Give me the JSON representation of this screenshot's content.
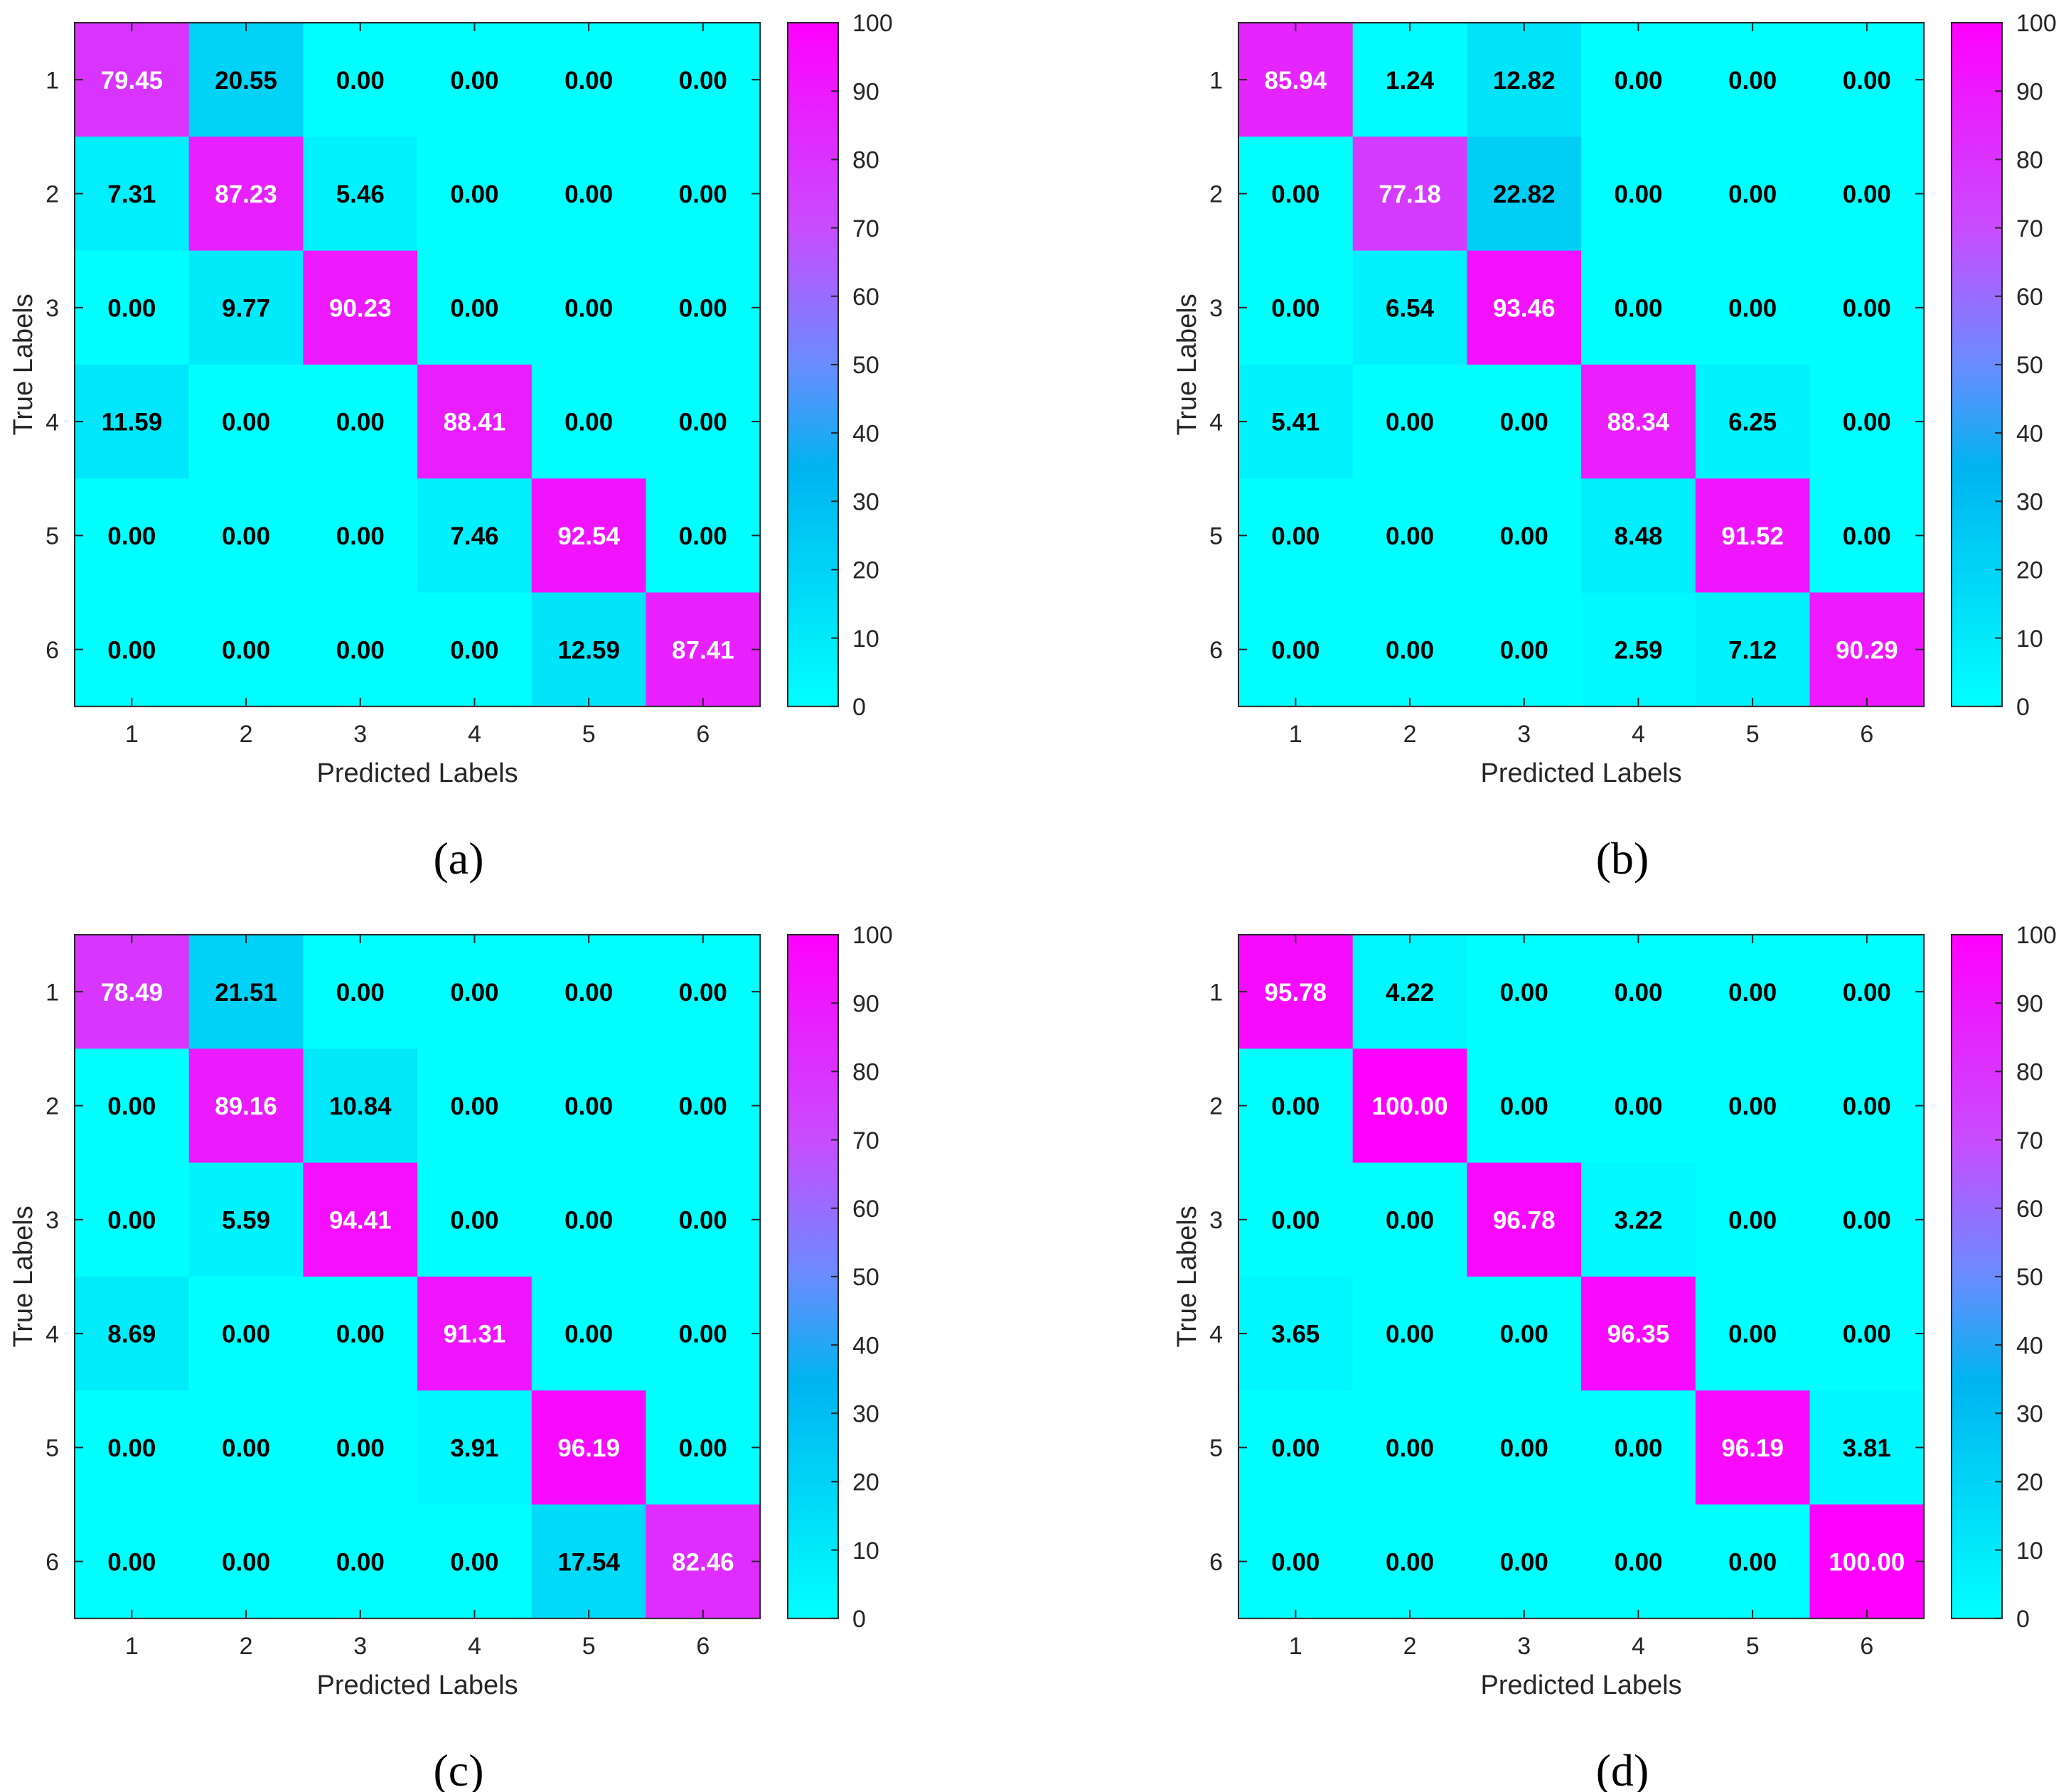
{
  "chart_data": [
    {
      "type": "heatmap",
      "panel_label": "(a)",
      "xlabel": "Predicted Labels",
      "ylabel": "True Labels",
      "x_tick_labels": [
        "1",
        "2",
        "3",
        "4",
        "5",
        "6"
      ],
      "y_tick_labels": [
        "1",
        "2",
        "3",
        "4",
        "5",
        "6"
      ],
      "values": [
        [
          79.45,
          20.55,
          0.0,
          0.0,
          0.0,
          0.0
        ],
        [
          7.31,
          87.23,
          5.46,
          0.0,
          0.0,
          0.0
        ],
        [
          0.0,
          9.77,
          90.23,
          0.0,
          0.0,
          0.0
        ],
        [
          11.59,
          0.0,
          0.0,
          88.41,
          0.0,
          0.0
        ],
        [
          0.0,
          0.0,
          0.0,
          7.46,
          92.54,
          0.0
        ],
        [
          0.0,
          0.0,
          0.0,
          0.0,
          12.59,
          87.41
        ]
      ],
      "colorbar": {
        "range": [
          0,
          100
        ],
        "ticks": [
          "0",
          "10",
          "20",
          "30",
          "40",
          "50",
          "60",
          "70",
          "80",
          "90",
          "100"
        ]
      }
    },
    {
      "type": "heatmap",
      "panel_label": "(b)",
      "xlabel": "Predicted Labels",
      "ylabel": "True Labels",
      "x_tick_labels": [
        "1",
        "2",
        "3",
        "4",
        "5",
        "6"
      ],
      "y_tick_labels": [
        "1",
        "2",
        "3",
        "4",
        "5",
        "6"
      ],
      "values": [
        [
          85.94,
          1.24,
          12.82,
          0.0,
          0.0,
          0.0
        ],
        [
          0.0,
          77.18,
          22.82,
          0.0,
          0.0,
          0.0
        ],
        [
          0.0,
          6.54,
          93.46,
          0.0,
          0.0,
          0.0
        ],
        [
          5.41,
          0.0,
          0.0,
          88.34,
          6.25,
          0.0
        ],
        [
          0.0,
          0.0,
          0.0,
          8.48,
          91.52,
          0.0
        ],
        [
          0.0,
          0.0,
          0.0,
          2.59,
          7.12,
          90.29
        ]
      ],
      "colorbar": {
        "range": [
          0,
          100
        ],
        "ticks": [
          "0",
          "10",
          "20",
          "30",
          "40",
          "50",
          "60",
          "70",
          "80",
          "90",
          "100"
        ]
      }
    },
    {
      "type": "heatmap",
      "panel_label": "(c)",
      "xlabel": "Predicted Labels",
      "ylabel": "True Labels",
      "x_tick_labels": [
        "1",
        "2",
        "3",
        "4",
        "5",
        "6"
      ],
      "y_tick_labels": [
        "1",
        "2",
        "3",
        "4",
        "5",
        "6"
      ],
      "values": [
        [
          78.49,
          21.51,
          0.0,
          0.0,
          0.0,
          0.0
        ],
        [
          0.0,
          89.16,
          10.84,
          0.0,
          0.0,
          0.0
        ],
        [
          0.0,
          5.59,
          94.41,
          0.0,
          0.0,
          0.0
        ],
        [
          8.69,
          0.0,
          0.0,
          91.31,
          0.0,
          0.0
        ],
        [
          0.0,
          0.0,
          0.0,
          3.91,
          96.19,
          0.0
        ],
        [
          0.0,
          0.0,
          0.0,
          0.0,
          17.54,
          82.46
        ]
      ],
      "colorbar": {
        "range": [
          0,
          100
        ],
        "ticks": [
          "0",
          "10",
          "20",
          "30",
          "40",
          "50",
          "60",
          "70",
          "80",
          "90",
          "100"
        ]
      }
    },
    {
      "type": "heatmap",
      "panel_label": "(d)",
      "xlabel": "Predicted Labels",
      "ylabel": "True Labels",
      "x_tick_labels": [
        "1",
        "2",
        "3",
        "4",
        "5",
        "6"
      ],
      "y_tick_labels": [
        "1",
        "2",
        "3",
        "4",
        "5",
        "6"
      ],
      "values": [
        [
          95.78,
          4.22,
          0.0,
          0.0,
          0.0,
          0.0
        ],
        [
          0.0,
          100.0,
          0.0,
          0.0,
          0.0,
          0.0
        ],
        [
          0.0,
          0.0,
          96.78,
          3.22,
          0.0,
          0.0
        ],
        [
          3.65,
          0.0,
          0.0,
          96.35,
          0.0,
          0.0
        ],
        [
          0.0,
          0.0,
          0.0,
          0.0,
          96.19,
          3.81
        ],
        [
          0.0,
          0.0,
          0.0,
          0.0,
          0.0,
          100.0
        ]
      ],
      "colorbar": {
        "range": [
          0,
          100
        ],
        "ticks": [
          "0",
          "10",
          "20",
          "30",
          "40",
          "50",
          "60",
          "70",
          "80",
          "90",
          "100"
        ]
      }
    }
  ],
  "colormap": [
    [
      0,
      "#00ffff"
    ],
    [
      35,
      "#00b4f0"
    ],
    [
      50,
      "#6a8cff"
    ],
    [
      70,
      "#c84cff"
    ],
    [
      100,
      "#ff00ff"
    ]
  ],
  "text_colors": {
    "low": "#000000",
    "high": "#ffffff"
  }
}
